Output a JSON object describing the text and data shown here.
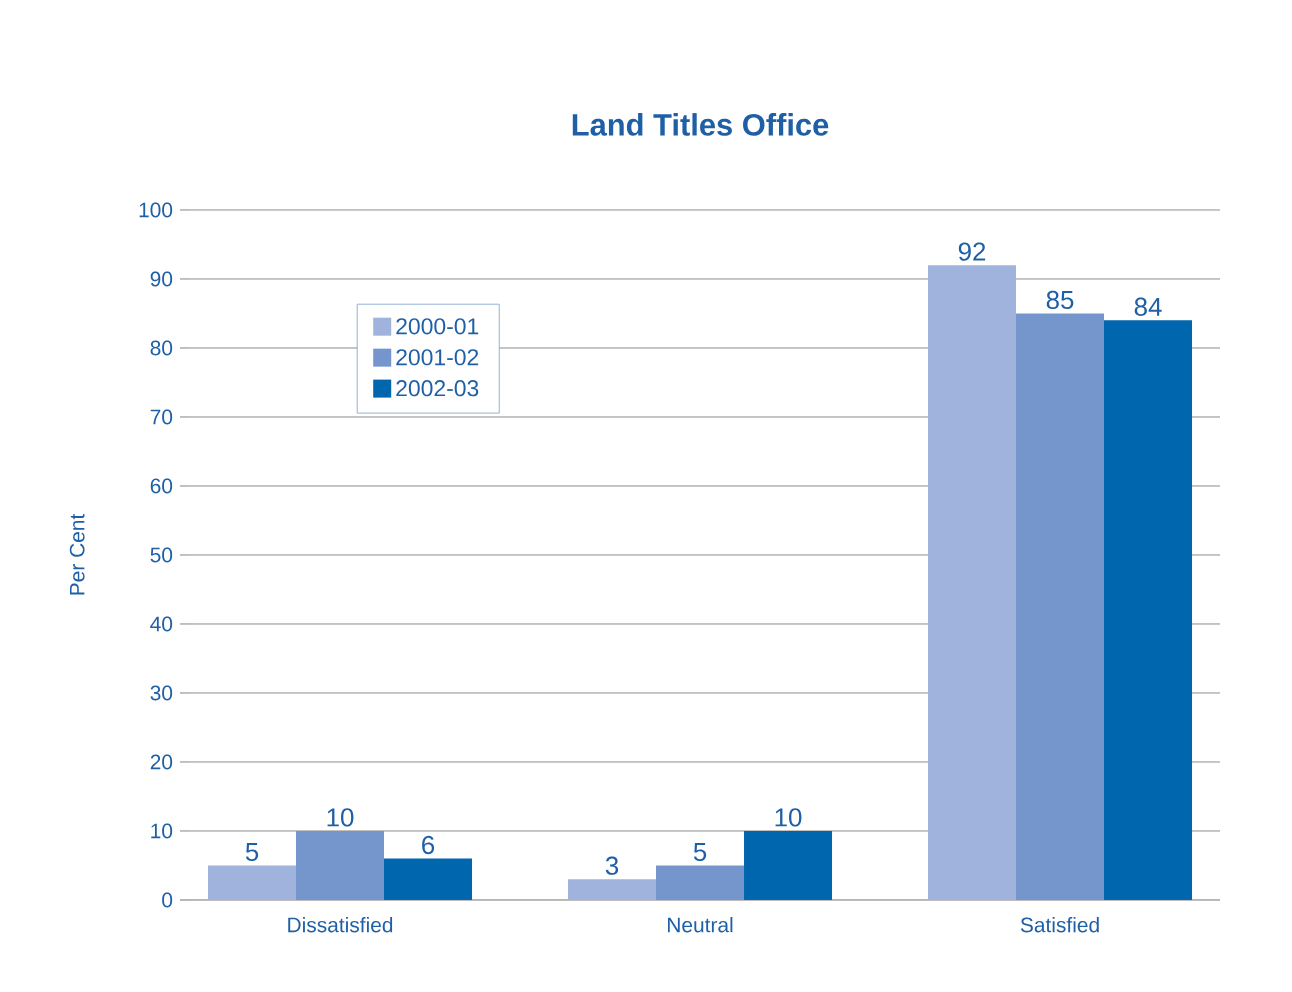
{
  "chart_data": {
    "type": "bar",
    "title": "Land Titles Office",
    "ylabel": "Per Cent",
    "categories": [
      "Dissatisfied",
      "Neutral",
      "Satisfied"
    ],
    "series": [
      {
        "name": "2000-01",
        "color": "#a0b3dc",
        "values": [
          5,
          3,
          92
        ]
      },
      {
        "name": "2001-02",
        "color": "#7496cc",
        "values": [
          10,
          5,
          85
        ]
      },
      {
        "name": "2002-03",
        "color": "#0066ae",
        "values": [
          6,
          10,
          84
        ]
      }
    ],
    "ylim": [
      0,
      100
    ],
    "yticks": [
      0,
      10,
      20,
      30,
      40,
      50,
      60,
      70,
      80,
      90,
      100
    ],
    "grid": "y",
    "legend": "top left",
    "data_labels": true
  }
}
